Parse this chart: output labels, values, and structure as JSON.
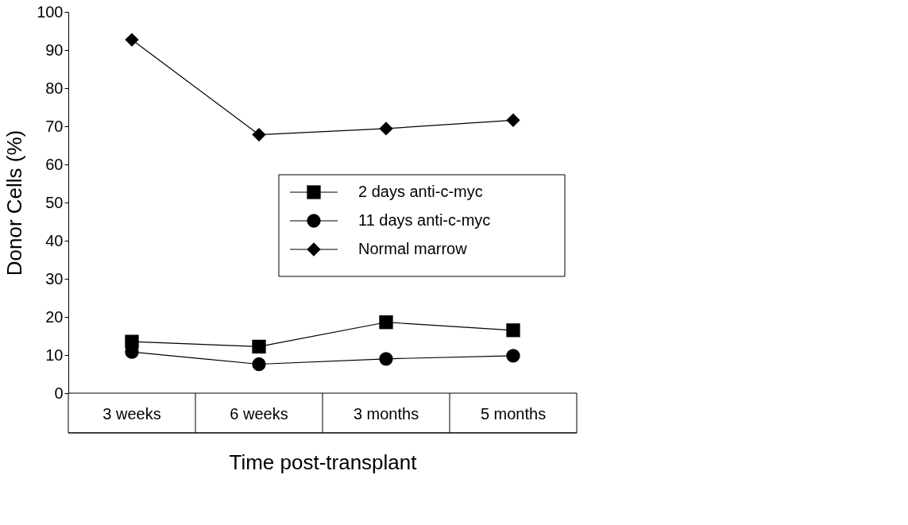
{
  "chart_data": {
    "type": "line",
    "xlabel": "Time post-transplant",
    "ylabel": "Donor Cells (%)",
    "categories": [
      "3 weeks",
      "6 weeks",
      "3 months",
      "5 months"
    ],
    "ylim": [
      0,
      100
    ],
    "yticks": [
      0,
      10,
      20,
      30,
      40,
      50,
      60,
      70,
      80,
      90,
      100
    ],
    "grid": false,
    "legend": "right",
    "line_style": "solid",
    "series": [
      {
        "name": "2 days anti-c-myc",
        "color": "#000000",
        "marker": "square",
        "values": [
          13.5,
          12.2,
          18.6,
          16.5
        ]
      },
      {
        "name": "11 days anti-c-myc",
        "color": "#000000",
        "marker": "circle",
        "values": [
          10.8,
          7.6,
          9.0,
          9.8
        ]
      },
      {
        "name": "Normal marrow",
        "color": "#000000",
        "marker": "diamond",
        "values": [
          92.7,
          67.8,
          69.4,
          71.6
        ]
      }
    ]
  }
}
